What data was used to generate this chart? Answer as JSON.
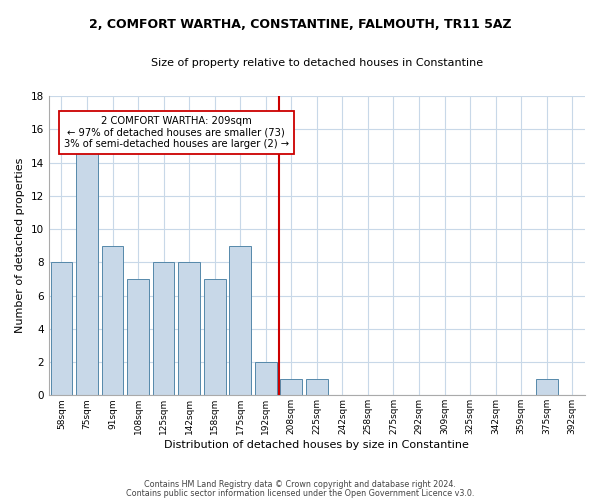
{
  "title": "2, COMFORT WARTHA, CONSTANTINE, FALMOUTH, TR11 5AZ",
  "subtitle": "Size of property relative to detached houses in Constantine",
  "xlabel": "Distribution of detached houses by size in Constantine",
  "ylabel": "Number of detached properties",
  "bar_labels": [
    "58sqm",
    "75sqm",
    "91sqm",
    "108sqm",
    "125sqm",
    "142sqm",
    "158sqm",
    "175sqm",
    "192sqm",
    "208sqm",
    "225sqm",
    "242sqm",
    "258sqm",
    "275sqm",
    "292sqm",
    "309sqm",
    "325sqm",
    "342sqm",
    "359sqm",
    "375sqm",
    "392sqm"
  ],
  "bar_values": [
    8,
    15,
    9,
    7,
    8,
    8,
    7,
    9,
    2,
    1,
    1,
    0,
    0,
    0,
    0,
    0,
    0,
    0,
    0,
    1,
    0
  ],
  "bar_color": "#c8d8e8",
  "bar_edge_color": "#5588aa",
  "highlight_index": 9,
  "highlight_line_color": "#cc0000",
  "annotation_line1": "2 COMFORT WARTHA: 209sqm",
  "annotation_line2": "← 97% of detached houses are smaller (73)",
  "annotation_line3": "3% of semi-detached houses are larger (2) →",
  "annotation_box_edge_color": "#cc0000",
  "ylim": [
    0,
    18
  ],
  "yticks": [
    0,
    2,
    4,
    6,
    8,
    10,
    12,
    14,
    16,
    18
  ],
  "footer_line1": "Contains HM Land Registry data © Crown copyright and database right 2024.",
  "footer_line2": "Contains public sector information licensed under the Open Government Licence v3.0.",
  "bg_color": "#ffffff",
  "grid_color": "#c8d8e8"
}
